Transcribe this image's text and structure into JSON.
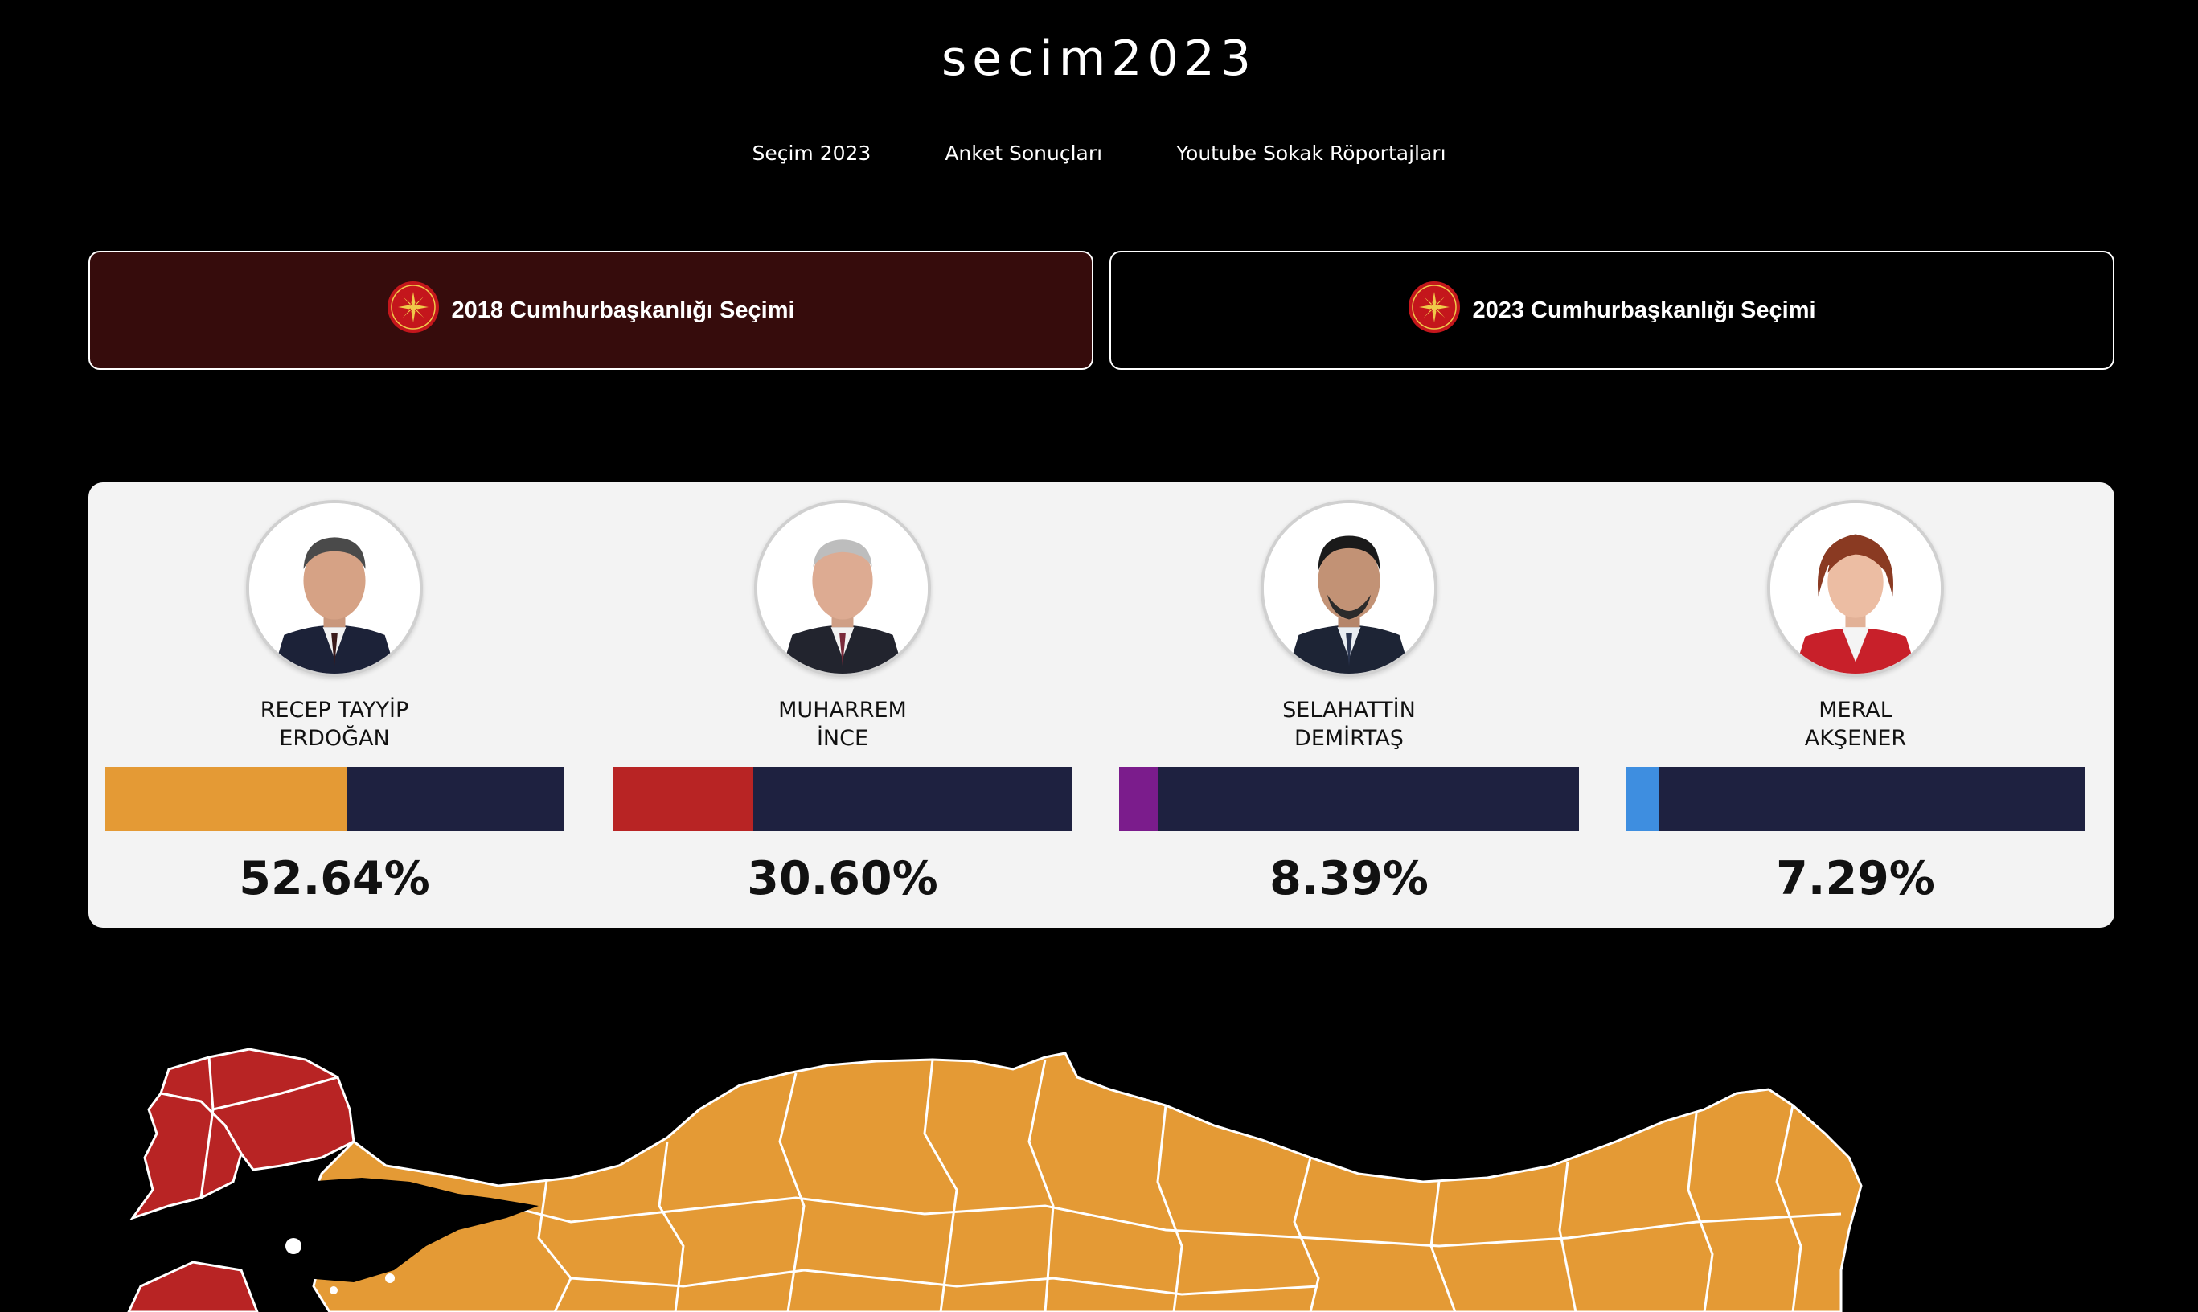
{
  "site": {
    "title": "secim2023"
  },
  "nav": {
    "items": [
      {
        "label": "Seçim 2023"
      },
      {
        "label": "Anket Sonuçları"
      },
      {
        "label": "Youtube Sokak Röportajları"
      }
    ]
  },
  "elections": [
    {
      "label": "2018 Cumhurbaşkanlığı Seçimi",
      "active": true
    },
    {
      "label": "2023 Cumhurbaşkanlığı Seçimi",
      "active": false
    }
  ],
  "candidates": [
    {
      "name_line1": "RECEP TAYYİP",
      "name_line2": "ERDOĞAN",
      "percent_label": "52.64%",
      "percent": 52.64,
      "color": "#e49a35"
    },
    {
      "name_line1": "MUHARREM",
      "name_line2": "İNCE",
      "percent_label": "30.60%",
      "percent": 30.6,
      "color": "#b82424"
    },
    {
      "name_line1": "SELAHATTİN",
      "name_line2": "DEMİRTAŞ",
      "percent_label": "8.39%",
      "percent": 8.39,
      "color": "#7b1c8c"
    },
    {
      "name_line1": "MERAL",
      "name_line2": "AKŞENER",
      "percent_label": "7.29%",
      "percent": 7.29,
      "color": "#3e8ee0"
    }
  ],
  "colors": {
    "background": "#000000",
    "active_button": "#360c0c",
    "bar_track": "#1e2140",
    "map_winner_erdogan": "#e49a35",
    "map_winner_ince": "#b82424"
  }
}
